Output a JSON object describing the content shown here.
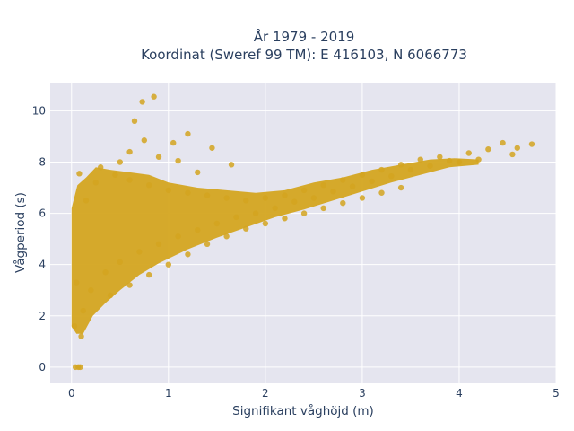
{
  "chart_data": {
    "type": "scatter",
    "title": "År 1979 - 2019",
    "subtitle": "Koordinat (Sweref 99 TM): E 416103, N 6066773",
    "xlabel": "Signifikant våghöjd (m)",
    "ylabel": "Vågperiod (s)",
    "xlim": [
      -0.22,
      5.0
    ],
    "ylim": [
      -0.6,
      11.1
    ],
    "xticks": [
      0,
      1,
      2,
      3,
      4,
      5
    ],
    "yticks": [
      0,
      2,
      4,
      6,
      8,
      10
    ],
    "grid": true,
    "legend": "none",
    "marker_color": "#d4a520",
    "background": "#e5e5ef",
    "points": [
      {
        "x": 0.85,
        "y": 10.55
      },
      {
        "x": 0.73,
        "y": 10.35
      },
      {
        "x": 0.65,
        "y": 9.6
      },
      {
        "x": 1.2,
        "y": 9.1
      },
      {
        "x": 0.75,
        "y": 8.85
      },
      {
        "x": 1.05,
        "y": 8.75
      },
      {
        "x": 1.45,
        "y": 8.55
      },
      {
        "x": 0.6,
        "y": 8.4
      },
      {
        "x": 0.9,
        "y": 8.2
      },
      {
        "x": 1.1,
        "y": 8.05
      },
      {
        "x": 0.5,
        "y": 8.0
      },
      {
        "x": 1.65,
        "y": 7.9
      },
      {
        "x": 0.08,
        "y": 7.55
      },
      {
        "x": 0.3,
        "y": 7.8
      },
      {
        "x": 1.3,
        "y": 7.6
      },
      {
        "x": 0.05,
        "y": 3.3
      },
      {
        "x": 0.03,
        "y": 1.6
      },
      {
        "x": 0.04,
        "y": 0.0
      },
      {
        "x": 0.07,
        "y": 0.0
      },
      {
        "x": 0.09,
        "y": 0.0
      },
      {
        "x": 4.45,
        "y": 8.75
      },
      {
        "x": 4.6,
        "y": 8.55
      },
      {
        "x": 4.75,
        "y": 8.7
      },
      {
        "x": 4.55,
        "y": 8.3
      },
      {
        "x": 4.3,
        "y": 8.5
      },
      {
        "x": 4.1,
        "y": 8.35
      },
      {
        "x": 3.9,
        "y": 8.05
      },
      {
        "x": 3.7,
        "y": 7.85
      },
      {
        "x": 3.5,
        "y": 7.7
      },
      {
        "x": 3.3,
        "y": 7.45
      },
      {
        "x": 3.1,
        "y": 7.25
      },
      {
        "x": 2.9,
        "y": 7.05
      },
      {
        "x": 2.7,
        "y": 6.85
      },
      {
        "x": 2.5,
        "y": 6.6
      },
      {
        "x": 2.3,
        "y": 6.45
      },
      {
        "x": 2.1,
        "y": 6.2
      },
      {
        "x": 1.9,
        "y": 6.0
      },
      {
        "x": 1.7,
        "y": 5.85
      },
      {
        "x": 1.5,
        "y": 5.6
      },
      {
        "x": 1.3,
        "y": 5.35
      },
      {
        "x": 1.1,
        "y": 5.1
      },
      {
        "x": 0.9,
        "y": 4.8
      },
      {
        "x": 0.7,
        "y": 4.5
      },
      {
        "x": 0.5,
        "y": 4.1
      },
      {
        "x": 0.35,
        "y": 3.7
      },
      {
        "x": 0.2,
        "y": 3.0
      },
      {
        "x": 0.12,
        "y": 2.2
      },
      {
        "x": 0.1,
        "y": 1.2
      },
      {
        "x": 0.15,
        "y": 6.5
      },
      {
        "x": 0.25,
        "y": 7.2
      },
      {
        "x": 0.45,
        "y": 7.5
      },
      {
        "x": 0.6,
        "y": 7.3
      },
      {
        "x": 0.8,
        "y": 7.1
      },
      {
        "x": 1.0,
        "y": 6.9
      },
      {
        "x": 1.2,
        "y": 6.8
      },
      {
        "x": 1.4,
        "y": 6.7
      },
      {
        "x": 1.6,
        "y": 6.6
      },
      {
        "x": 1.8,
        "y": 6.5
      },
      {
        "x": 2.0,
        "y": 6.6
      },
      {
        "x": 2.2,
        "y": 6.7
      },
      {
        "x": 2.4,
        "y": 6.9
      },
      {
        "x": 2.6,
        "y": 7.1
      },
      {
        "x": 2.8,
        "y": 7.3
      },
      {
        "x": 3.0,
        "y": 7.5
      },
      {
        "x": 3.2,
        "y": 7.7
      },
      {
        "x": 3.4,
        "y": 7.9
      },
      {
        "x": 3.6,
        "y": 8.1
      },
      {
        "x": 3.8,
        "y": 8.2
      },
      {
        "x": 4.0,
        "y": 8.0
      },
      {
        "x": 4.2,
        "y": 8.1
      },
      {
        "x": 0.4,
        "y": 2.8
      },
      {
        "x": 0.6,
        "y": 3.2
      },
      {
        "x": 0.8,
        "y": 3.6
      },
      {
        "x": 1.0,
        "y": 4.0
      },
      {
        "x": 1.2,
        "y": 4.4
      },
      {
        "x": 1.4,
        "y": 4.8
      },
      {
        "x": 1.6,
        "y": 5.1
      },
      {
        "x": 1.8,
        "y": 5.4
      },
      {
        "x": 2.0,
        "y": 5.6
      },
      {
        "x": 2.2,
        "y": 5.8
      },
      {
        "x": 2.4,
        "y": 6.0
      },
      {
        "x": 2.6,
        "y": 6.2
      },
      {
        "x": 2.8,
        "y": 6.4
      },
      {
        "x": 3.0,
        "y": 6.6
      },
      {
        "x": 3.2,
        "y": 6.8
      },
      {
        "x": 3.4,
        "y": 7.0
      }
    ]
  }
}
